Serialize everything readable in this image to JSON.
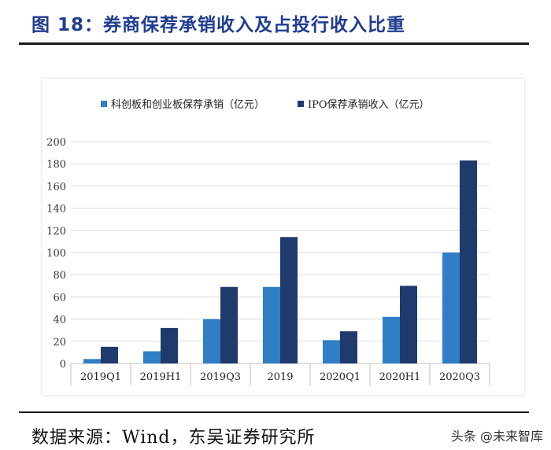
{
  "figure": {
    "title": "图 18：券商保荐承销收入及占投行收入比重",
    "source": "数据来源：Wind，东吴证券研究所",
    "watermark": "头条 @未来智库"
  },
  "chart_data": {
    "type": "bar",
    "categories": [
      "2019Q1",
      "2019H1",
      "2019Q3",
      "2019",
      "2020Q1",
      "2020H1",
      "2020Q3"
    ],
    "series": [
      {
        "name": "科创板和创业板保荐承销（亿元）",
        "color": "#2f7ec6",
        "values": [
          4,
          11,
          40,
          69,
          21,
          42,
          100
        ]
      },
      {
        "name": "IPO保荐承销收入（亿元）",
        "color": "#1f3b6e",
        "values": [
          15,
          32,
          69,
          114,
          29,
          70,
          183
        ]
      }
    ],
    "yticks": [
      0,
      20,
      40,
      60,
      80,
      100,
      120,
      140,
      160,
      180,
      200
    ],
    "ylim": [
      0,
      200
    ],
    "grid": true,
    "legend_position": "top"
  }
}
